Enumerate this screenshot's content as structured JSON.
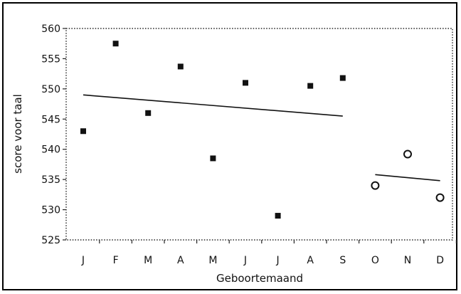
{
  "chart_data": {
    "type": "scatter",
    "title": "",
    "xlabel": "Geboortemaand",
    "ylabel": "score voor taal",
    "categories": [
      "J",
      "F",
      "M",
      "A",
      "M",
      "J",
      "J",
      "A",
      "S",
      "O",
      "N",
      "D"
    ],
    "ylim": [
      525,
      560
    ],
    "yticks": [
      525,
      530,
      535,
      540,
      545,
      550,
      555,
      560
    ],
    "grid": false,
    "legend": "none",
    "series": [
      {
        "marker": "filled-square",
        "color": "#111111",
        "points": [
          {
            "x": "J",
            "y": 543
          },
          {
            "x": "F",
            "y": 557.5
          },
          {
            "x": "M",
            "y": 546
          },
          {
            "x": "A",
            "y": 553.7
          },
          {
            "x": "M",
            "y": 538.5
          },
          {
            "x": "J",
            "y": 551
          },
          {
            "x": "J",
            "y": 529
          },
          {
            "x": "A",
            "y": 550.5
          },
          {
            "x": "S",
            "y": 551.8
          }
        ],
        "trend": {
          "from": {
            "x": "J",
            "y": 549
          },
          "to": {
            "x": "S",
            "y": 545.5
          }
        }
      },
      {
        "marker": "open-circle",
        "color": "#111111",
        "points": [
          {
            "x": "O",
            "y": 534
          },
          {
            "x": "N",
            "y": 539.2
          },
          {
            "x": "D",
            "y": 532
          }
        ],
        "trend": {
          "from": {
            "x": "O",
            "y": 535.8
          },
          "to": {
            "x": "D",
            "y": 534.8
          }
        }
      }
    ]
  }
}
